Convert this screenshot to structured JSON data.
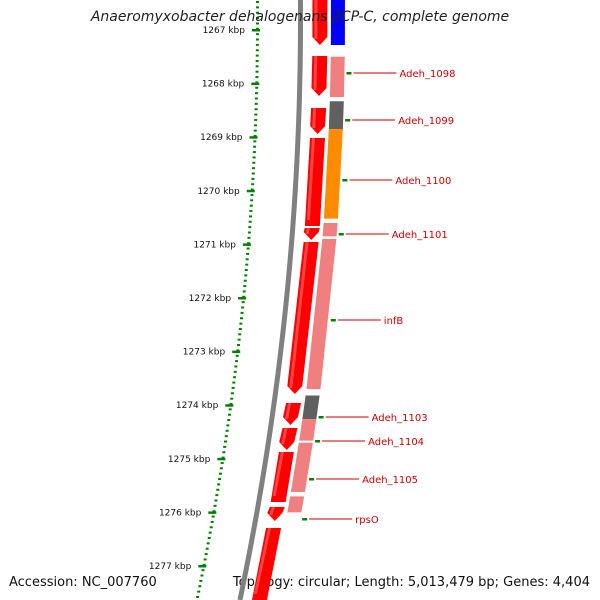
{
  "title": "Anaeromyxobacter dehalogenans 2CP-C, complete genome",
  "accession": "Accession: NC_007760",
  "stats": "Topology: circular; Length: 5,013,479 bp; Genes: 4,404",
  "ticks": [
    "1267 kbp",
    "1268 kbp",
    "1269 kbp",
    "1270 kbp",
    "1271 kbp",
    "1272 kbp",
    "1273 kbp",
    "1274 kbp",
    "1275 kbp",
    "1276 kbp",
    "1277 kbp"
  ],
  "genes": [
    {
      "label": "Adeh_1098",
      "start": 1267.5,
      "end": 1268.25,
      "color": "#f08080"
    },
    {
      "label": "Adeh_1099",
      "start": 1268.33,
      "end": 1268.85,
      "color": "#606060"
    },
    {
      "label": "Adeh_1100",
      "start": 1268.85,
      "end": 1270.52,
      "color": "#ff8c00"
    },
    {
      "label": "Adeh_1101",
      "start": 1270.6,
      "end": 1270.85,
      "color": "#f08080"
    },
    {
      "label": "infB",
      "start": 1270.9,
      "end": 1273.7,
      "color": "#f08080"
    },
    {
      "label": "Adeh_1103",
      "start": 1273.82,
      "end": 1274.26,
      "color": "#606060"
    },
    {
      "label": "Adeh_1104",
      "start": 1274.26,
      "end": 1274.66,
      "color": "#f08080"
    },
    {
      "label": "Adeh_1105",
      "start": 1274.7,
      "end": 1275.62,
      "color": "#f08080"
    },
    {
      "label": "rpsO",
      "start": 1275.7,
      "end": 1276.0,
      "color": "#f08080"
    }
  ],
  "colors": {
    "cds": "#ff0000",
    "axis": "#808080",
    "tick": "#008000",
    "label": "#cc0000",
    "top_gene": "#0000ff"
  }
}
